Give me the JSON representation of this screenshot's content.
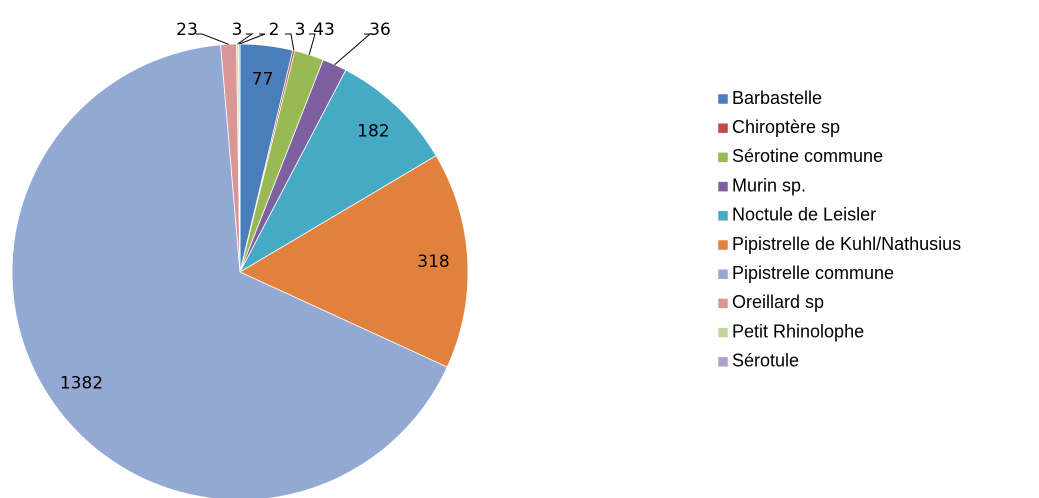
{
  "chart_data": {
    "type": "pie",
    "categories": [
      "Barbastelle",
      "Chiroptère sp",
      "Sérotine commune",
      "Murin sp.",
      "Noctule de Leisler",
      "Pipistrelle de Kuhl/Nathusius",
      "Pipistrelle commune",
      "Oreillard sp",
      "Petit Rhinolophe",
      "Sérotule"
    ],
    "values": [
      77,
      3,
      43,
      36,
      182,
      318,
      1382,
      23,
      3,
      2
    ],
    "colors": [
      "#4a7ebb",
      "#be4b48",
      "#98b954",
      "#7d60a0",
      "#46aac5",
      "#e0823d",
      "#93a9d4",
      "#d99694",
      "#c3d69b",
      "#b3a2c7"
    ],
    "legend": "right"
  }
}
